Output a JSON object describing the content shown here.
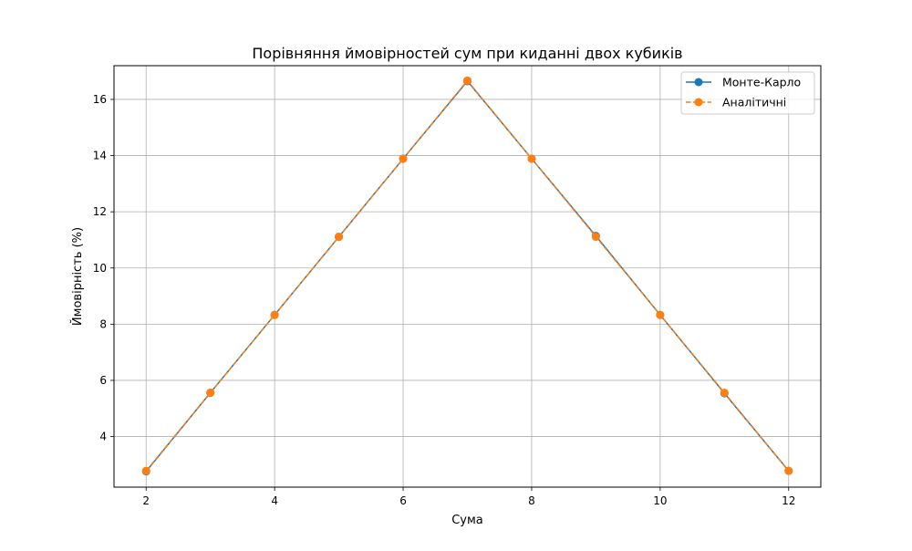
{
  "chart_data": {
    "type": "line",
    "title": "Порівняння ймовірностей сум при киданні двох кубиків",
    "xlabel": "Сума",
    "ylabel": "Ймовірність (%)",
    "x": [
      2,
      3,
      4,
      5,
      6,
      7,
      8,
      9,
      10,
      11,
      12
    ],
    "xlim": [
      1.5,
      12.5
    ],
    "ylim": [
      2.2,
      17.2
    ],
    "xticks": [
      2,
      4,
      6,
      8,
      10,
      12
    ],
    "yticks": [
      4,
      6,
      8,
      10,
      12,
      14,
      16
    ],
    "grid": true,
    "legend_position": "top-right",
    "series": [
      {
        "name": "Монте-Карло",
        "color": "#1f77b4",
        "line_style": "solid",
        "marker": "circle",
        "values": [
          2.76,
          5.56,
          8.33,
          11.11,
          13.89,
          16.65,
          13.89,
          11.14,
          8.33,
          5.54,
          2.78
        ]
      },
      {
        "name": "Аналітичні",
        "color": "#ff7f0e",
        "line_style": "dashed",
        "marker": "circle",
        "values": [
          2.78,
          5.56,
          8.33,
          11.11,
          13.89,
          16.67,
          13.89,
          11.11,
          8.33,
          5.56,
          2.78
        ]
      }
    ]
  }
}
